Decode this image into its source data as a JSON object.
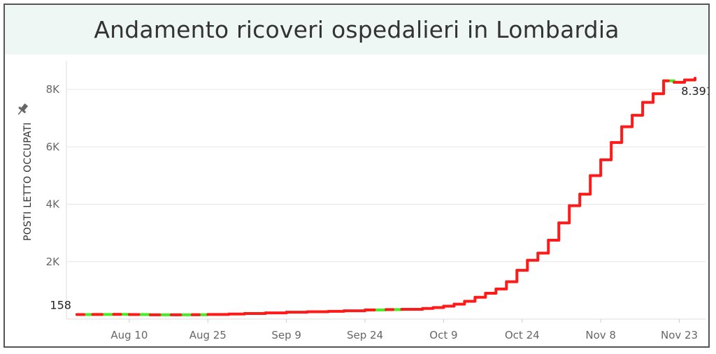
{
  "title": "Andamento ricoveri ospedalieri in Lombardia",
  "pin_icon": "pin-icon",
  "colors": {
    "line_up": "#ff1a1a",
    "line_flat": "#44ee22",
    "grid": "#e6e6e6",
    "title_bg": "#eef7f4"
  },
  "chart_data": {
    "type": "line",
    "title": "Andamento ricoveri ospedalieri in Lombardia",
    "xlabel": "",
    "ylabel": "POSTI LETTO OCCUPATI",
    "ylim": [
      0,
      9000
    ],
    "xlim": [
      "2020-07-29",
      "2020-11-28"
    ],
    "x_ticks": [
      {
        "date": "2020-08-10",
        "label": "Aug 10"
      },
      {
        "date": "2020-08-25",
        "label": "Aug 25"
      },
      {
        "date": "2020-09-09",
        "label": "Sep 9"
      },
      {
        "date": "2020-09-24",
        "label": "Sep 24"
      },
      {
        "date": "2020-10-09",
        "label": "Oct 9"
      },
      {
        "date": "2020-10-24",
        "label": "Oct 24"
      },
      {
        "date": "2020-11-08",
        "label": "Nov 8"
      },
      {
        "date": "2020-11-23",
        "label": "Nov 23"
      }
    ],
    "y_ticks": [
      {
        "value": 2000,
        "label": "2K"
      },
      {
        "value": 4000,
        "label": "4K"
      },
      {
        "value": 6000,
        "label": "6K"
      },
      {
        "value": 8000,
        "label": "8K"
      }
    ],
    "grid": true,
    "legend": "none",
    "series": [
      {
        "points": [
          [
            "2020-07-31",
            158
          ],
          [
            "2020-08-03",
            160
          ],
          [
            "2020-08-07",
            165
          ],
          [
            "2020-08-10",
            158
          ],
          [
            "2020-08-14",
            150
          ],
          [
            "2020-08-18",
            148
          ],
          [
            "2020-08-22",
            152
          ],
          [
            "2020-08-25",
            160
          ],
          [
            "2020-08-29",
            175
          ],
          [
            "2020-09-01",
            195
          ],
          [
            "2020-09-05",
            215
          ],
          [
            "2020-09-09",
            240
          ],
          [
            "2020-09-13",
            255
          ],
          [
            "2020-09-17",
            270
          ],
          [
            "2020-09-20",
            290
          ],
          [
            "2020-09-24",
            320
          ],
          [
            "2020-09-28",
            330
          ],
          [
            "2020-10-01",
            340
          ],
          [
            "2020-10-05",
            370
          ],
          [
            "2020-10-07",
            400
          ],
          [
            "2020-10-09",
            450
          ],
          [
            "2020-10-11",
            520
          ],
          [
            "2020-10-13",
            620
          ],
          [
            "2020-10-15",
            760
          ],
          [
            "2020-10-17",
            900
          ],
          [
            "2020-10-19",
            1050
          ],
          [
            "2020-10-21",
            1300
          ],
          [
            "2020-10-23",
            1700
          ],
          [
            "2020-10-25",
            2050
          ],
          [
            "2020-10-27",
            2300
          ],
          [
            "2020-10-29",
            2750
          ],
          [
            "2020-10-31",
            3350
          ],
          [
            "2020-11-02",
            3950
          ],
          [
            "2020-11-04",
            4350
          ],
          [
            "2020-11-06",
            5000
          ],
          [
            "2020-11-08",
            5550
          ],
          [
            "2020-11-10",
            6150
          ],
          [
            "2020-11-12",
            6700
          ],
          [
            "2020-11-14",
            7100
          ],
          [
            "2020-11-16",
            7550
          ],
          [
            "2020-11-18",
            7850
          ],
          [
            "2020-11-20",
            8300
          ],
          [
            "2020-11-22",
            8250
          ],
          [
            "2020-11-24",
            8330
          ],
          [
            "2020-11-26",
            8391
          ]
        ]
      }
    ],
    "annotations": [
      {
        "date": "2020-07-31",
        "value": 158,
        "label": "158"
      },
      {
        "date": "2020-11-26",
        "value": 8391,
        "label": "8.391"
      }
    ]
  }
}
